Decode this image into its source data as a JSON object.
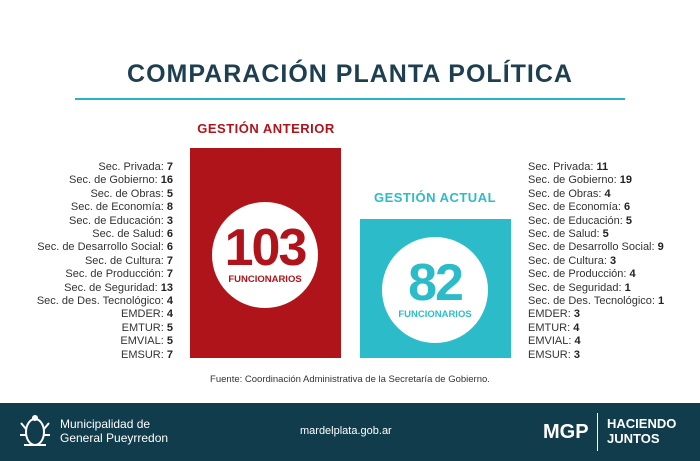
{
  "title": "COMPARACIÓN PLANTA POLÍTICA",
  "colors": {
    "anterior": "#b0141b",
    "actual": "#2cbcc9",
    "title": "#1d3f4f",
    "footer": "#103c4c"
  },
  "anterior": {
    "label": "GESTIÓN ANTERIOR",
    "total": "103",
    "unit": "FUNCIONARIOS",
    "items": [
      [
        "Sec. Privada:",
        "7"
      ],
      [
        "Sec. de Gobierno:",
        "16"
      ],
      [
        "Sec. de Obras:",
        "5"
      ],
      [
        "Sec. de Economía:",
        "8"
      ],
      [
        "Sec. de Educación:",
        "3"
      ],
      [
        "Sec. de Salud:",
        "6"
      ],
      [
        "Sec. de Desarrollo Social:",
        "6"
      ],
      [
        "Sec. de Cultura:",
        "7"
      ],
      [
        "Sec. de Producción:",
        "7"
      ],
      [
        "Sec. de Seguridad:",
        "13"
      ],
      [
        "Sec. de Des. Tecnológico:",
        "4"
      ],
      [
        "EMDER:",
        "4"
      ],
      [
        "EMTUR:",
        "5"
      ],
      [
        "EMVIAL:",
        "5"
      ],
      [
        "EMSUR:",
        "7"
      ]
    ]
  },
  "actual": {
    "label": "GESTIÓN ACTUAL",
    "total": "82",
    "unit": "FUNCIONARIOS",
    "items": [
      [
        "Sec. Privada:",
        "11"
      ],
      [
        "Sec. de Gobierno:",
        "19"
      ],
      [
        "Sec. de Obras:",
        "4"
      ],
      [
        "Sec. de Economía:",
        "6"
      ],
      [
        "Sec. de Educación:",
        "5"
      ],
      [
        "Sec. de Salud:",
        "5"
      ],
      [
        "Sec. de Desarrollo Social:",
        "9"
      ],
      [
        "Sec. de Cultura:",
        "3"
      ],
      [
        "Sec. de Producción:",
        "4"
      ],
      [
        "Sec. de Seguridad:",
        "1"
      ],
      [
        "Sec. de Des. Tecnológico:",
        "1"
      ],
      [
        "EMDER:",
        "3"
      ],
      [
        "EMTUR:",
        "4"
      ],
      [
        "EMVIAL:",
        "4"
      ],
      [
        "EMSUR:",
        "3"
      ]
    ]
  },
  "source": "Fuente: Coordinación Administrativa de la Secretaría de Gobierno.",
  "footer": {
    "org_line1": "Municipalidad de",
    "org_line2": "General Pueyrredon",
    "url": "mardelplata.gob.ar",
    "brand": "MGP",
    "slogan_line1": "HACIENDO",
    "slogan_line2": "JUNTOS"
  }
}
